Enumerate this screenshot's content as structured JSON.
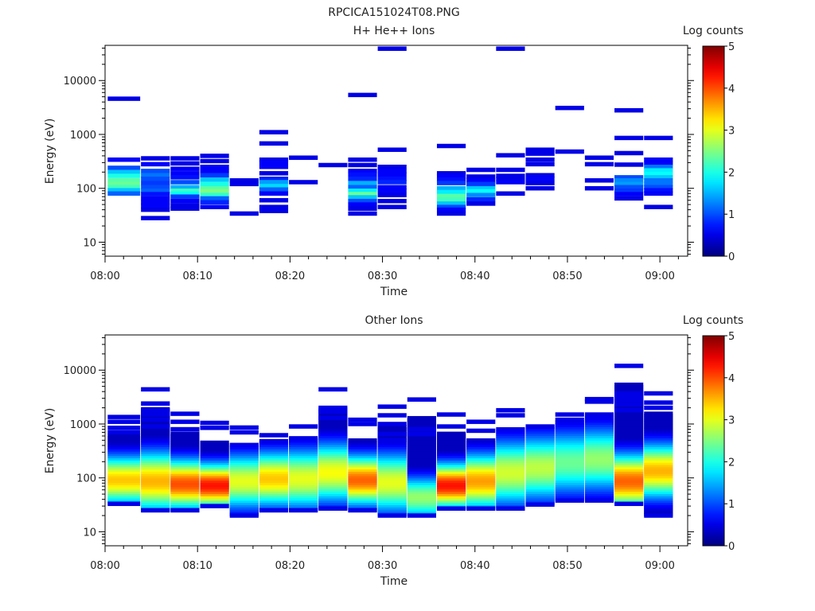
{
  "figure_title": "RPCICA151024T08.PNG",
  "chart_data": [
    {
      "type": "heatmap",
      "title": "H+ He++ Ions",
      "xlabel": "Time",
      "ylabel": "Energy (eV)",
      "colorbar_label": "Log counts",
      "x_ticks": [
        "08:00",
        "08:10",
        "08:20",
        "08:30",
        "08:40",
        "08:50",
        "09:00"
      ],
      "x_range_min": [
        0,
        63
      ],
      "y_ticks": [
        "10",
        "100",
        "1000",
        "10000"
      ],
      "y_scale": "log",
      "y_range_ev": [
        5.5,
        45000
      ],
      "colorbar_ticks": [
        "0",
        "1",
        "2",
        "3",
        "4",
        "5"
      ],
      "colorbar_range": [
        0,
        5
      ],
      "time_bins_min": [
        [
          0.2,
          3.8
        ],
        [
          3.8,
          7.0
        ],
        [
          7.0,
          10.2
        ],
        [
          10.2,
          13.4
        ],
        [
          13.4,
          16.6
        ],
        [
          16.6,
          19.8
        ],
        [
          19.8,
          23.0
        ],
        [
          23.0,
          26.2
        ],
        [
          26.2,
          29.4
        ],
        [
          29.4,
          32.6
        ],
        [
          32.6,
          35.8
        ],
        [
          35.8,
          39.0
        ],
        [
          39.0,
          42.2
        ],
        [
          42.2,
          45.4
        ],
        [
          45.4,
          48.6
        ],
        [
          48.6,
          51.8
        ],
        [
          51.8,
          55.0
        ],
        [
          55.0,
          58.2
        ],
        [
          58.2,
          61.4
        ]
      ],
      "cells": [
        [
          [
            4600,
            0.5
          ],
          [
            340,
            0.6
          ],
          [
            240,
            1.0
          ],
          [
            200,
            1.6
          ],
          [
            170,
            2.0
          ],
          [
            140,
            2.3
          ],
          [
            120,
            2.4
          ],
          [
            105,
            2.2
          ],
          [
            92,
            1.6
          ],
          [
            80,
            1.1
          ]
        ],
        [
          [
            360,
            0.5
          ],
          [
            280,
            0.6
          ],
          [
            210,
            1.0
          ],
          [
            175,
            1.2
          ],
          [
            150,
            1.0
          ],
          [
            125,
            0.9
          ],
          [
            105,
            1.0
          ],
          [
            90,
            1.1
          ],
          [
            78,
            0.7
          ],
          [
            65,
            0.6
          ],
          [
            55,
            0.6
          ],
          [
            47,
            0.6
          ],
          [
            40,
            0.5
          ],
          [
            28,
            0.5
          ]
        ],
        [
          [
            360,
            0.5
          ],
          [
            290,
            0.5
          ],
          [
            230,
            0.6
          ],
          [
            190,
            0.6
          ],
          [
            160,
            0.7
          ],
          [
            130,
            1.0
          ],
          [
            105,
            1.5
          ],
          [
            90,
            2.2
          ],
          [
            80,
            1.9
          ],
          [
            70,
            0.9
          ],
          [
            58,
            0.6
          ],
          [
            48,
            0.5
          ],
          [
            42,
            0.5
          ]
        ],
        [
          [
            400,
            0.5
          ],
          [
            320,
            0.5
          ],
          [
            250,
            0.6
          ],
          [
            210,
            0.6
          ],
          [
            175,
            0.9
          ],
          [
            145,
            1.6
          ],
          [
            120,
            2.0
          ],
          [
            100,
            2.3
          ],
          [
            88,
            2.5
          ],
          [
            75,
            2.1
          ],
          [
            65,
            1.1
          ],
          [
            55,
            0.8
          ],
          [
            45,
            0.6
          ]
        ],
        [
          [
            140,
            0.5
          ],
          [
            120,
            0.5
          ],
          [
            34,
            0.5
          ]
        ],
        [
          [
            1100,
            0.5
          ],
          [
            680,
            0.5
          ],
          [
            340,
            0.5
          ],
          [
            300,
            0.6
          ],
          [
            250,
            0.6
          ],
          [
            190,
            0.5
          ],
          [
            150,
            0.8
          ],
          [
            130,
            1.4
          ],
          [
            110,
            1.7
          ],
          [
            95,
            1.1
          ],
          [
            80,
            0.6
          ],
          [
            60,
            0.5
          ],
          [
            45,
            0.5
          ],
          [
            38,
            0.5
          ]
        ],
        [
          [
            370,
            0.5
          ],
          [
            130,
            0.5
          ]
        ],
        [
          [
            270,
            0.5
          ]
        ],
        [
          [
            5400,
            0.5
          ],
          [
            340,
            0.5
          ],
          [
            270,
            0.5
          ],
          [
            210,
            0.6
          ],
          [
            180,
            0.7
          ],
          [
            150,
            0.8
          ],
          [
            125,
            1.5
          ],
          [
            105,
            1.1
          ],
          [
            90,
            1.8
          ],
          [
            78,
            2.4
          ],
          [
            68,
            1.6
          ],
          [
            58,
            1.0
          ],
          [
            50,
            0.6
          ],
          [
            42,
            0.5
          ],
          [
            34,
            0.5
          ]
        ],
        [
          [
            39000,
            0.5
          ],
          [
            520,
            0.5
          ],
          [
            250,
            0.5
          ],
          [
            210,
            0.6
          ],
          [
            180,
            0.6
          ],
          [
            150,
            0.7
          ],
          [
            130,
            0.8
          ],
          [
            105,
            0.6
          ],
          [
            90,
            0.6
          ],
          [
            75,
            0.5
          ],
          [
            58,
            0.5
          ],
          [
            45,
            0.5
          ]
        ],
        [
          [],
          []
        ],
        [
          [
            610,
            0.5
          ],
          [
            190,
            0.5
          ],
          [
            165,
            0.6
          ],
          [
            145,
            0.7
          ],
          [
            125,
            0.9
          ],
          [
            100,
            1.5
          ],
          [
            85,
            1.8
          ],
          [
            72,
            2.3
          ],
          [
            62,
            2.2
          ],
          [
            52,
            1.6
          ],
          [
            45,
            1.0
          ],
          [
            40,
            0.6
          ],
          [
            34,
            0.5
          ]
        ],
        [
          [
            220,
            0.5
          ],
          [
            165,
            0.5
          ],
          [
            140,
            0.6
          ],
          [
            120,
            0.9
          ],
          [
            100,
            1.6
          ],
          [
            88,
            1.9
          ],
          [
            75,
            1.3
          ],
          [
            62,
            0.8
          ],
          [
            52,
            0.5
          ]
        ],
        [
          [
            39000,
            0.5
          ],
          [
            410,
            0.5
          ],
          [
            220,
            0.5
          ],
          [
            170,
            0.5
          ],
          [
            150,
            0.5
          ],
          [
            130,
            0.6
          ],
          [
            80,
            0.5
          ]
        ],
        [
          [
            520,
            0.5
          ],
          [
            440,
            0.5
          ],
          [
            340,
            0.5
          ],
          [
            280,
            0.5
          ],
          [
            175,
            0.5
          ],
          [
            150,
            0.6
          ],
          [
            125,
            0.5
          ],
          [
            100,
            0.5
          ]
        ],
        [
          [
            3100,
            0.5
          ],
          [
            480,
            0.5
          ]
        ],
        [
          [
            370,
            0.5
          ],
          [
            280,
            0.5
          ],
          [
            140,
            0.5
          ],
          [
            100,
            0.5
          ]
        ],
        [
          [
            2800,
            0.5
          ],
          [
            860,
            0.5
          ],
          [
            450,
            0.5
          ],
          [
            275,
            0.5
          ],
          [
            160,
            1.0
          ],
          [
            140,
            1.3
          ],
          [
            120,
            1.4
          ],
          [
            105,
            1.0
          ],
          [
            90,
            0.9
          ],
          [
            78,
            0.6
          ],
          [
            65,
            0.5
          ]
        ],
        [
          [
            860,
            0.5
          ],
          [
            340,
            0.6
          ],
          [
            290,
            0.6
          ],
          [
            250,
            1.2
          ],
          [
            215,
            1.8
          ],
          [
            185,
            1.9
          ],
          [
            160,
            1.6
          ],
          [
            140,
            1.2
          ],
          [
            120,
            1.2
          ],
          [
            105,
            1.0
          ],
          [
            92,
            0.7
          ],
          [
            80,
            0.6
          ],
          [
            45,
            0.5
          ]
        ]
      ]
    },
    {
      "type": "heatmap",
      "title": "Other Ions",
      "xlabel": "Time",
      "ylabel": "Energy (eV)",
      "colorbar_label": "Log counts",
      "x_ticks": [
        "08:00",
        "08:10",
        "08:20",
        "08:30",
        "08:40",
        "08:50",
        "09:00"
      ],
      "x_range_min": [
        0,
        63
      ],
      "y_ticks": [
        "10",
        "100",
        "1000",
        "10000"
      ],
      "y_scale": "log",
      "y_range_ev": [
        5.5,
        45000
      ],
      "colorbar_ticks": [
        "0",
        "1",
        "2",
        "3",
        "4",
        "5"
      ],
      "colorbar_range": [
        0,
        5
      ],
      "profiles": [
        {
          "top": 1350,
          "bottom": 33,
          "peak_e": 95,
          "peak_v": 3.4,
          "width": 0.45,
          "top_lines": [
            1350,
            1100,
            850,
            700
          ]
        },
        {
          "top": 4400,
          "bottom": 25,
          "peak_e": 90,
          "peak_v": 3.5,
          "width": 0.55,
          "top_lines": [
            4400,
            2400,
            1800,
            1500,
            1200,
            900
          ]
        },
        {
          "top": 1550,
          "bottom": 25,
          "peak_e": 80,
          "peak_v": 4.0,
          "width": 0.45,
          "top_lines": [
            1550,
            1100,
            800
          ]
        },
        {
          "top": 1050,
          "bottom": 30,
          "peak_e": 75,
          "peak_v": 4.3,
          "width": 0.4,
          "top_lines": [
            1050,
            850
          ]
        },
        {
          "top": 860,
          "bottom": 20,
          "peak_e": 90,
          "peak_v": 3.0,
          "width": 0.5,
          "top_lines": [
            860,
            700
          ]
        },
        {
          "top": 620,
          "bottom": 25,
          "peak_e": 100,
          "peak_v": 3.4,
          "width": 0.5,
          "top_lines": [
            620,
            480
          ]
        },
        {
          "top": 900,
          "bottom": 25,
          "peak_e": 100,
          "peak_v": 3.0,
          "width": 0.55,
          "top_lines": [
            900
          ]
        },
        {
          "top": 4400,
          "bottom": 27,
          "peak_e": 130,
          "peak_v": 3.1,
          "width": 0.55,
          "top_lines": [
            4400,
            2000,
            1700,
            1300
          ]
        },
        {
          "top": 1200,
          "bottom": 25,
          "peak_e": 95,
          "peak_v": 3.9,
          "width": 0.45,
          "top_lines": [
            1200,
            1000
          ]
        },
        {
          "top": 2100,
          "bottom": 20,
          "peak_e": 85,
          "peak_v": 3.0,
          "width": 0.55,
          "top_lines": [
            2100,
            1450,
            1000,
            650,
            500
          ]
        },
        {
          "top": 2850,
          "bottom": 20,
          "peak_e": 45,
          "peak_v": 2.6,
          "width": 0.4,
          "top_lines": [
            2850,
            800,
            650
          ]
        },
        {
          "top": 1500,
          "bottom": 27,
          "peak_e": 75,
          "peak_v": 4.3,
          "width": 0.4,
          "top_lines": [
            1500,
            900
          ]
        },
        {
          "top": 1100,
          "bottom": 27,
          "peak_e": 90,
          "peak_v": 3.6,
          "width": 0.5,
          "top_lines": [
            1100,
            750
          ]
        },
        {
          "top": 1800,
          "bottom": 27,
          "peak_e": 130,
          "peak_v": 2.9,
          "width": 0.6,
          "top_lines": [
            1800,
            1450
          ]
        },
        {
          "top": 900,
          "bottom": 32,
          "peak_e": 160,
          "peak_v": 2.8,
          "width": 0.6,
          "top_lines": [
            900
          ]
        },
        {
          "top": 1500,
          "bottom": 38,
          "peak_e": 200,
          "peak_v": 2.4,
          "width": 0.6,
          "top_lines": [
            1500,
            1200
          ]
        },
        {
          "top": 2900,
          "bottom": 38,
          "peak_e": 230,
          "peak_v": 2.6,
          "width": 0.6,
          "top_lines": [
            2900,
            2600,
            1500
          ]
        },
        {
          "top": 12000,
          "bottom": 33,
          "peak_e": 90,
          "peak_v": 3.9,
          "width": 0.5,
          "top_lines": [
            12000,
            3700,
            3200,
            2800,
            2300,
            1800
          ]
        },
        {
          "top": 3700,
          "bottom": 20,
          "peak_e": 140,
          "peak_v": 3.5,
          "width": 0.5,
          "top_lines": [
            3700,
            2500,
            2000
          ]
        }
      ]
    }
  ]
}
